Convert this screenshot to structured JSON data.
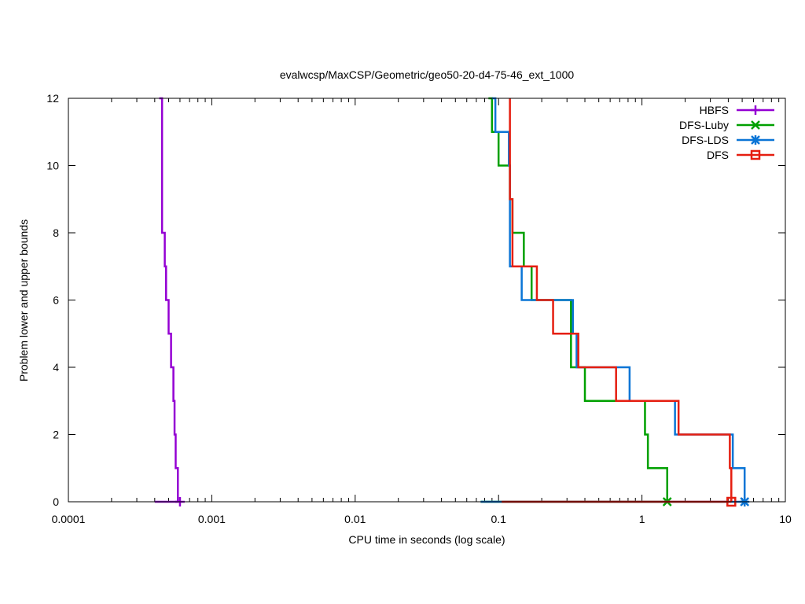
{
  "chart_data": {
    "type": "line",
    "title": "evalwcsp/MaxCSP/Geometric/geo50-20-d4-75-46_ext_1000",
    "xlabel": "CPU time in seconds (log scale)",
    "ylabel": "Problem lower and upper bounds",
    "xscale": "log",
    "xlim": [
      0.0001,
      10
    ],
    "ylim": [
      0,
      12
    ],
    "x_ticks": [
      0.0001,
      0.001,
      0.01,
      0.1,
      1,
      10
    ],
    "x_tick_labels": [
      "0.0001",
      "0.001",
      "0.01",
      "0.1",
      "1",
      "10"
    ],
    "y_ticks": [
      0,
      2,
      4,
      6,
      8,
      10,
      12
    ],
    "y_tick_labels": [
      "0",
      "2",
      "4",
      "6",
      "8",
      "10",
      "12"
    ],
    "legend_position": "top-right",
    "series": [
      {
        "name": "HBFS",
        "color": "#9400d3",
        "marker": "plus",
        "upper": [
          [
            0.00043,
            12
          ],
          [
            0.00045,
            8
          ],
          [
            0.00047,
            7
          ],
          [
            0.00048,
            6
          ],
          [
            0.0005,
            5
          ],
          [
            0.00052,
            4
          ],
          [
            0.00054,
            3
          ],
          [
            0.00055,
            2
          ],
          [
            0.00056,
            1
          ],
          [
            0.00058,
            0
          ]
        ],
        "lower": [
          [
            0.0004,
            0
          ],
          [
            0.00058,
            0
          ]
        ],
        "final": [
          0.0006,
          0
        ]
      },
      {
        "name": "DFS-Luby",
        "color": "#00a000",
        "marker": "cross",
        "upper": [
          [
            0.085,
            12
          ],
          [
            0.09,
            11
          ],
          [
            0.1,
            10
          ],
          [
            0.12,
            9
          ],
          [
            0.125,
            8
          ],
          [
            0.15,
            7
          ],
          [
            0.17,
            6
          ],
          [
            0.32,
            4
          ],
          [
            0.4,
            3
          ],
          [
            1.05,
            2
          ],
          [
            1.1,
            1
          ],
          [
            1.5,
            0
          ]
        ],
        "lower": [
          [
            0.075,
            0
          ],
          [
            1.5,
            0
          ]
        ],
        "final": [
          1.5,
          0
        ]
      },
      {
        "name": "DFS-LDS",
        "color": "#0a75d6",
        "marker": "star",
        "upper": [
          [
            0.09,
            12
          ],
          [
            0.095,
            11
          ],
          [
            0.118,
            10
          ],
          [
            0.12,
            7
          ],
          [
            0.145,
            6
          ],
          [
            0.33,
            5
          ],
          [
            0.35,
            4
          ],
          [
            0.82,
            3
          ],
          [
            1.7,
            2
          ],
          [
            4.3,
            1
          ],
          [
            5.2,
            0
          ]
        ],
        "lower": [
          [
            0.075,
            0
          ],
          [
            5.2,
            0
          ]
        ],
        "final": [
          5.2,
          0
        ]
      },
      {
        "name": "DFS",
        "color": "#e51e10",
        "marker": "square",
        "upper": [
          [
            0.12,
            12
          ],
          [
            0.12,
            9
          ],
          [
            0.125,
            7
          ],
          [
            0.185,
            6
          ],
          [
            0.24,
            5
          ],
          [
            0.36,
            4
          ],
          [
            0.66,
            3
          ],
          [
            1.8,
            2
          ],
          [
            4.1,
            1
          ],
          [
            4.2,
            0
          ]
        ],
        "lower": [
          [
            0.105,
            0
          ],
          [
            4.2,
            0
          ]
        ],
        "final": [
          4.2,
          0
        ]
      }
    ]
  }
}
